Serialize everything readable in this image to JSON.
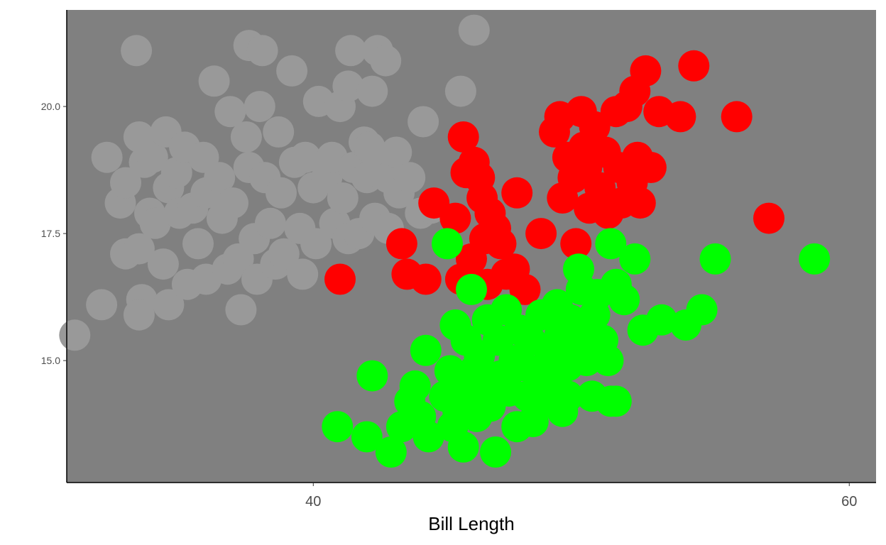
{
  "chart_data": {
    "type": "scatter",
    "title": "",
    "xlabel": "Bill Length",
    "ylabel": "",
    "xlim": [
      30.8,
      61.0
    ],
    "ylim": [
      12.6,
      21.9
    ],
    "x_ticks": [
      40,
      60
    ],
    "x_tick_labels": [
      "40",
      "60"
    ],
    "y_ticks": [
      15.0,
      17.5,
      20.0
    ],
    "y_tick_labels": [
      "15.0",
      "17.5",
      "20.0"
    ],
    "grid": false,
    "legend": "none",
    "panel_background": "#808080",
    "series": [
      {
        "color": "#999999",
        "points": [
          [
            31.1,
            15.5
          ],
          [
            32.1,
            16.1
          ],
          [
            32.3,
            19.0
          ],
          [
            32.8,
            18.1
          ],
          [
            33.0,
            18.5
          ],
          [
            33.0,
            17.1
          ],
          [
            33.5,
            17.2
          ],
          [
            33.4,
            21.1
          ],
          [
            33.5,
            19.4
          ],
          [
            33.7,
            18.9
          ],
          [
            33.9,
            17.9
          ],
          [
            33.6,
            16.2
          ],
          [
            33.5,
            15.9
          ],
          [
            34.0,
            19.0
          ],
          [
            34.1,
            17.7
          ],
          [
            34.5,
            19.5
          ],
          [
            34.6,
            18.4
          ],
          [
            34.4,
            16.9
          ],
          [
            34.6,
            16.1
          ],
          [
            34.9,
            18.7
          ],
          [
            35.0,
            17.9
          ],
          [
            35.2,
            19.2
          ],
          [
            35.3,
            16.5
          ],
          [
            35.5,
            18.0
          ],
          [
            35.7,
            17.3
          ],
          [
            35.9,
            19.0
          ],
          [
            36.0,
            18.3
          ],
          [
            36.0,
            16.6
          ],
          [
            36.3,
            20.5
          ],
          [
            36.5,
            18.6
          ],
          [
            36.6,
            17.8
          ],
          [
            36.8,
            16.8
          ],
          [
            36.9,
            19.9
          ],
          [
            37.0,
            18.1
          ],
          [
            37.2,
            17.0
          ],
          [
            37.3,
            16.0
          ],
          [
            37.5,
            19.4
          ],
          [
            37.6,
            18.8
          ],
          [
            37.8,
            17.4
          ],
          [
            37.9,
            16.6
          ],
          [
            37.6,
            21.2
          ],
          [
            38.0,
            20.0
          ],
          [
            38.2,
            18.6
          ],
          [
            38.4,
            17.7
          ],
          [
            38.6,
            16.9
          ],
          [
            38.1,
            21.1
          ],
          [
            38.7,
            19.5
          ],
          [
            38.8,
            18.3
          ],
          [
            38.9,
            17.1
          ],
          [
            39.2,
            20.7
          ],
          [
            39.3,
            18.9
          ],
          [
            39.5,
            17.6
          ],
          [
            39.6,
            16.7
          ],
          [
            39.7,
            19.0
          ],
          [
            40.0,
            18.4
          ],
          [
            40.1,
            17.3
          ],
          [
            40.2,
            20.1
          ],
          [
            40.5,
            18.6
          ],
          [
            40.7,
            19.0
          ],
          [
            40.8,
            17.7
          ],
          [
            41.0,
            20.0
          ],
          [
            41.1,
            18.2
          ],
          [
            41.3,
            17.4
          ],
          [
            41.3,
            20.4
          ],
          [
            41.5,
            18.8
          ],
          [
            41.7,
            17.5
          ],
          [
            41.9,
            19.3
          ],
          [
            41.4,
            21.1
          ],
          [
            42.0,
            18.6
          ],
          [
            42.1,
            19.2
          ],
          [
            42.2,
            20.3
          ],
          [
            42.3,
            17.8
          ],
          [
            42.5,
            18.7
          ],
          [
            42.4,
            21.1
          ],
          [
            42.7,
            20.9
          ],
          [
            42.8,
            18.6
          ],
          [
            42.8,
            17.6
          ],
          [
            43.1,
            19.1
          ],
          [
            43.2,
            18.3
          ],
          [
            43.6,
            18.6
          ],
          [
            44.0,
            17.9
          ],
          [
            44.1,
            19.7
          ],
          [
            44.4,
            18.0
          ],
          [
            45.5,
            20.3
          ],
          [
            46.0,
            21.5
          ]
        ]
      },
      {
        "color": "#ff0000",
        "points": [
          [
            41.0,
            16.6
          ],
          [
            43.3,
            17.3
          ],
          [
            43.5,
            16.7
          ],
          [
            44.2,
            16.6
          ],
          [
            44.5,
            18.1
          ],
          [
            45.3,
            17.8
          ],
          [
            45.5,
            16.6
          ],
          [
            45.6,
            19.4
          ],
          [
            45.7,
            18.7
          ],
          [
            45.9,
            17.0
          ],
          [
            46.0,
            18.9
          ],
          [
            46.2,
            18.6
          ],
          [
            46.3,
            18.2
          ],
          [
            46.4,
            17.4
          ],
          [
            46.5,
            16.5
          ],
          [
            46.6,
            17.9
          ],
          [
            46.8,
            17.6
          ],
          [
            47.0,
            17.3
          ],
          [
            47.2,
            16.7
          ],
          [
            47.5,
            16.8
          ],
          [
            47.6,
            18.3
          ],
          [
            47.9,
            16.4
          ],
          [
            48.5,
            17.5
          ],
          [
            49.0,
            19.5
          ],
          [
            49.2,
            19.8
          ],
          [
            49.3,
            18.2
          ],
          [
            49.5,
            19.0
          ],
          [
            49.7,
            18.6
          ],
          [
            49.8,
            17.3
          ],
          [
            50.0,
            19.9
          ],
          [
            50.1,
            19.2
          ],
          [
            50.2,
            18.8
          ],
          [
            50.3,
            18.0
          ],
          [
            50.5,
            19.6
          ],
          [
            50.7,
            18.4
          ],
          [
            50.9,
            19.1
          ],
          [
            51.0,
            17.9
          ],
          [
            51.3,
            19.9
          ],
          [
            51.4,
            18.8
          ],
          [
            51.5,
            18.1
          ],
          [
            51.7,
            20.0
          ],
          [
            51.9,
            18.5
          ],
          [
            52.0,
            20.3
          ],
          [
            52.1,
            19.0
          ],
          [
            52.2,
            18.1
          ],
          [
            52.4,
            20.7
          ],
          [
            52.6,
            18.8
          ],
          [
            52.9,
            19.9
          ],
          [
            53.7,
            19.8
          ],
          [
            54.2,
            20.8
          ],
          [
            55.8,
            19.8
          ],
          [
            57.0,
            17.8
          ]
        ]
      },
      {
        "color": "#00ff00",
        "points": [
          [
            40.9,
            13.7
          ],
          [
            42.0,
            13.5
          ],
          [
            42.2,
            14.7
          ],
          [
            42.9,
            13.2
          ],
          [
            43.3,
            13.7
          ],
          [
            43.6,
            14.2
          ],
          [
            43.8,
            14.5
          ],
          [
            44.0,
            13.9
          ],
          [
            44.2,
            15.2
          ],
          [
            44.3,
            13.5
          ],
          [
            44.9,
            14.3
          ],
          [
            45.1,
            14.8
          ],
          [
            45.2,
            13.7
          ],
          [
            45.3,
            15.7
          ],
          [
            45.4,
            14.0
          ],
          [
            45.5,
            14.6
          ],
          [
            45.6,
            13.3
          ],
          [
            45.7,
            15.4
          ],
          [
            45.8,
            14.2
          ],
          [
            45.9,
            16.4
          ],
          [
            46.0,
            14.8
          ],
          [
            46.1,
            13.9
          ],
          [
            46.2,
            15.1
          ],
          [
            46.4,
            14.5
          ],
          [
            46.5,
            15.8
          ],
          [
            46.6,
            14.1
          ],
          [
            46.8,
            13.2
          ],
          [
            46.9,
            15.4
          ],
          [
            47.0,
            14.7
          ],
          [
            47.2,
            16.0
          ],
          [
            47.3,
            14.4
          ],
          [
            47.5,
            15.0
          ],
          [
            47.6,
            13.7
          ],
          [
            47.7,
            15.6
          ],
          [
            47.8,
            14.9
          ],
          [
            48.0,
            14.3
          ],
          [
            48.1,
            15.4
          ],
          [
            48.2,
            13.8
          ],
          [
            48.4,
            14.8
          ],
          [
            48.5,
            15.9
          ],
          [
            48.7,
            14.2
          ],
          [
            48.8,
            15.2
          ],
          [
            49.0,
            14.6
          ],
          [
            49.1,
            16.1
          ],
          [
            49.2,
            15.5
          ],
          [
            49.3,
            14.0
          ],
          [
            49.5,
            14.9
          ],
          [
            49.6,
            15.8
          ],
          [
            49.8,
            15.2
          ],
          [
            50.0,
            16.4
          ],
          [
            50.1,
            15.6
          ],
          [
            50.2,
            15.0
          ],
          [
            50.4,
            14.3
          ],
          [
            50.5,
            15.9
          ],
          [
            50.6,
            16.3
          ],
          [
            50.8,
            15.4
          ],
          [
            51.0,
            15.0
          ],
          [
            51.1,
            17.3
          ],
          [
            51.3,
            16.5
          ],
          [
            51.6,
            16.2
          ],
          [
            51.1,
            14.2
          ],
          [
            52.0,
            17.0
          ],
          [
            52.3,
            15.6
          ],
          [
            53.0,
            15.8
          ],
          [
            53.9,
            15.7
          ],
          [
            54.5,
            16.0
          ],
          [
            55.0,
            17.0
          ],
          [
            45.0,
            17.3
          ],
          [
            49.9,
            16.8
          ],
          [
            58.7,
            17.0
          ],
          [
            51.3,
            14.2
          ],
          [
            49.5,
            14.3
          ]
        ]
      }
    ]
  }
}
